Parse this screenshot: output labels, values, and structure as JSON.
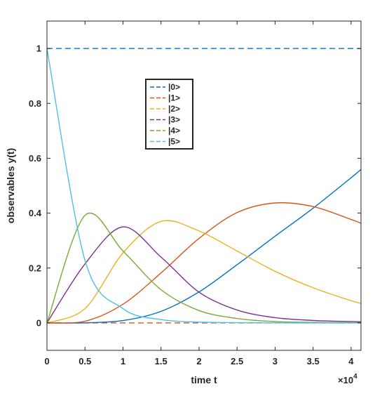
{
  "chart_data": {
    "type": "line",
    "title": "",
    "xlabel": "time t",
    "ylabel": "observables y(t)",
    "x_exponent_label": "×10",
    "x_exponent_power": "4",
    "xlim": [
      0,
      4.13
    ],
    "ylim": [
      -0.1,
      1.1
    ],
    "x_ticks": [
      0,
      0.5,
      1,
      1.5,
      2,
      2.5,
      3,
      3.5,
      4
    ],
    "x_tick_labels": [
      "0",
      "0.5",
      "1",
      "1.5",
      "2",
      "2.5",
      "3",
      "3.5",
      "4"
    ],
    "y_ticks": [
      0,
      0.2,
      0.4,
      0.6,
      0.8,
      1
    ],
    "y_tick_labels": [
      "0",
      "0.2",
      "0.4",
      "0.6",
      "0.8",
      "1"
    ],
    "grid": false,
    "legend_position": "upper-center",
    "x_units_note": "x values are in units of 10^4",
    "series": [
      {
        "name": "|0>",
        "color": "#0072BD",
        "dashed_reference": 1.0,
        "x": [
          0,
          0.5,
          1,
          1.5,
          2,
          2.5,
          3,
          3.5,
          4,
          4.13
        ],
        "y": [
          0,
          0.0003,
          0.0085,
          0.042,
          0.113,
          0.212,
          0.316,
          0.418,
          0.529,
          0.559
        ]
      },
      {
        "name": "|1>",
        "color": "#D95319",
        "dashed_reference": 0.0,
        "x": [
          0,
          0.5,
          1,
          1.5,
          2,
          2.5,
          3,
          3.5,
          4,
          4.13
        ],
        "y": [
          0,
          0.006,
          0.068,
          0.182,
          0.308,
          0.402,
          0.437,
          0.424,
          0.377,
          0.363
        ]
      },
      {
        "name": "|2>",
        "color": "#EDB120",
        "x": [
          0,
          0.5,
          1,
          1.5,
          2,
          2.5,
          3,
          3.5,
          4,
          4.13
        ],
        "y": [
          0,
          0.052,
          0.255,
          0.37,
          0.335,
          0.262,
          0.188,
          0.128,
          0.081,
          0.071
        ]
      },
      {
        "name": "|3>",
        "color": "#7E2F8E",
        "x": [
          0,
          0.5,
          1,
          1.5,
          2,
          2.5,
          3,
          3.5,
          4,
          4.13
        ],
        "y": [
          0,
          0.215,
          0.35,
          0.24,
          0.112,
          0.047,
          0.019,
          0.009,
          0.005,
          0.004
        ]
      },
      {
        "name": "|4>",
        "color": "#77AC30",
        "x": [
          0,
          0.5,
          1,
          1.5,
          2,
          2.5,
          3,
          3.5,
          4,
          4.13
        ],
        "y": [
          0,
          0.392,
          0.262,
          0.121,
          0.045,
          0.016,
          0.005,
          0.002,
          0.001,
          0.001
        ]
      },
      {
        "name": "|5>",
        "color": "#4DBEEE",
        "x": [
          0,
          0.5,
          1,
          1.5,
          2,
          2.5,
          3,
          3.5,
          4,
          4.13
        ],
        "y": [
          1.0,
          0.228,
          0.052,
          0.012,
          0.003,
          0.001,
          0.0002,
          0.0001,
          0.0,
          0.0
        ]
      }
    ]
  }
}
